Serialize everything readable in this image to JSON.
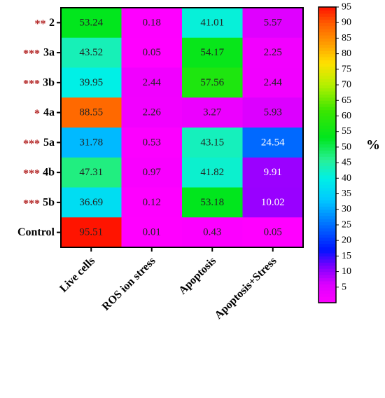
{
  "chart_data": {
    "type": "heatmap",
    "columns": [
      "Live cells",
      "ROS ion stress",
      "Apoptosis",
      "Apoptosis+Stress"
    ],
    "rows": [
      {
        "label": "2",
        "stars": "**",
        "values": [
          53.24,
          0.18,
          41.01,
          5.57
        ]
      },
      {
        "label": "3a",
        "stars": "***",
        "values": [
          43.52,
          0.05,
          54.17,
          2.25
        ]
      },
      {
        "label": "3b",
        "stars": "***",
        "values": [
          39.95,
          2.44,
          57.56,
          2.44
        ]
      },
      {
        "label": "4a",
        "stars": "*",
        "values": [
          88.55,
          2.26,
          3.27,
          5.93
        ]
      },
      {
        "label": "5a",
        "stars": "***",
        "values": [
          31.78,
          0.53,
          43.15,
          24.54
        ]
      },
      {
        "label": "4b",
        "stars": "***",
        "values": [
          47.31,
          0.97,
          41.82,
          9.91
        ]
      },
      {
        "label": "5b",
        "stars": "***",
        "values": [
          36.69,
          0.12,
          53.18,
          10.02
        ]
      },
      {
        "label": "Control",
        "stars": "",
        "values": [
          95.51,
          0.01,
          0.43,
          0.05
        ]
      }
    ],
    "colorbar": {
      "label": "%",
      "range": [
        0,
        95
      ],
      "ticks": [
        5,
        10,
        15,
        20,
        25,
        30,
        35,
        40,
        45,
        50,
        55,
        60,
        65,
        70,
        75,
        80,
        85,
        90,
        95
      ]
    },
    "colors": {
      "star_color": "#b22222",
      "dark_text": "#222222",
      "light_text": "#ffffff",
      "border": "#000000"
    }
  }
}
